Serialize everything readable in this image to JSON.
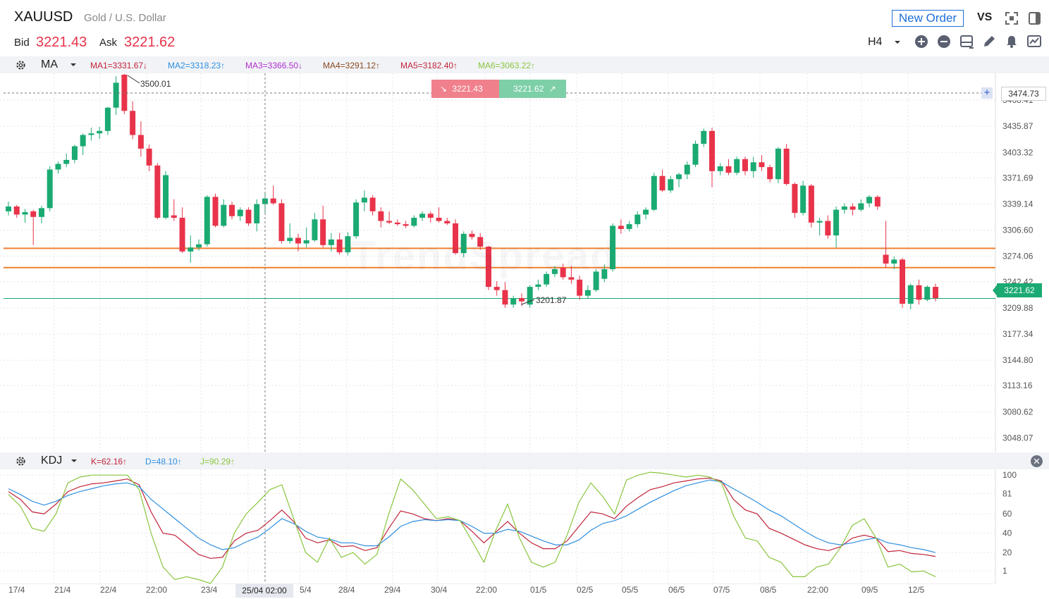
{
  "header": {
    "symbol": "XAUUSD",
    "description": "Gold / U.S. Dollar",
    "bid_label": "Bid",
    "bid": "3221.43",
    "ask_label": "Ask",
    "ask": "3221.62",
    "new_order_label": "New Order",
    "vs_label": "VS",
    "timeframe": "H4"
  },
  "toolbar_icons": [
    "zoom-in-icon",
    "zoom-out-icon",
    "chart-type-icon",
    "pencil-icon",
    "bell-icon",
    "chart-settings-icon"
  ],
  "colors": {
    "up": "#1aaa72",
    "down": "#e8334a",
    "ma_level": "#f08030",
    "k": "#c0233a",
    "d": "#2f8fe0",
    "j": "#8ac53e"
  },
  "ma_bar": {
    "name": "MA",
    "values": [
      {
        "label": "MA1=3331.67↓",
        "color": "#c0233a"
      },
      {
        "label": "MA2=3318.23↑",
        "color": "#2f8fe0"
      },
      {
        "label": "MA3=3366.50↓",
        "color": "#b02fcf"
      },
      {
        "label": "MA4=3291.12↑",
        "color": "#8a4a20"
      },
      {
        "label": "MA5=3182.40↑",
        "color": "#c0233a"
      },
      {
        "label": "MA6=3063.22↑",
        "color": "#8ac53e"
      }
    ]
  },
  "kdj_bar": {
    "name": "KDJ",
    "values": [
      {
        "label": "K=62.16↑",
        "color": "#c0233a"
      },
      {
        "label": "D=48.10↑",
        "color": "#2f8fe0"
      },
      {
        "label": "J=90.29↑",
        "color": "#8ac53e"
      }
    ]
  },
  "pills": {
    "bid": "3221.43",
    "ask": "3221.62"
  },
  "cursor": {
    "price": "3474.73",
    "time": "25/04 02:00"
  },
  "current_price_tag": "3221.62",
  "high_label": "3500.01",
  "low_label": "3201.87",
  "watermark": "TrendSpread",
  "chart_data": [
    {
      "type": "candlestick",
      "title": "",
      "y_ticks": [
        "3468.41",
        "3435.87",
        "3403.32",
        "3371.69",
        "3339.14",
        "3306.60",
        "3274.06",
        "3242.42",
        "3209.88",
        "3177.34",
        "3144.80",
        "3113.16",
        "3080.62",
        "3048.07"
      ],
      "ylim": [
        3030,
        3500
      ],
      "x_ticks": [
        "17/4",
        "21/4",
        "22/4",
        "22:00",
        "23/4",
        "5/4",
        "28/4",
        "29/4",
        "30/4",
        "22:00",
        "01/5",
        "02/5",
        "05/5",
        "06/5",
        "07/5",
        "08/5",
        "22:00",
        "09/5",
        "12/5"
      ],
      "horizontal_levels": [
        3284,
        3260
      ],
      "current_price": 3221.62,
      "candles": [
        [
          3330,
          3342,
          3325,
          3336
        ],
        [
          3336,
          3338,
          3322,
          3326
        ],
        [
          3326,
          3333,
          3316,
          3329
        ],
        [
          3330,
          3332,
          3288,
          3323
        ],
        [
          3323,
          3337,
          3315,
          3334
        ],
        [
          3334,
          3386,
          3330,
          3382
        ],
        [
          3382,
          3392,
          3377,
          3389
        ],
        [
          3389,
          3402,
          3385,
          3394
        ],
        [
          3394,
          3413,
          3390,
          3411
        ],
        [
          3411,
          3427,
          3400,
          3425
        ],
        [
          3425,
          3434,
          3418,
          3427
        ],
        [
          3427,
          3435,
          3420,
          3430
        ],
        [
          3430,
          3460,
          3425,
          3459
        ],
        [
          3459,
          3498,
          3450,
          3490
        ],
        [
          3500,
          3501,
          3451,
          3455
        ],
        [
          3455,
          3467,
          3420,
          3425
        ],
        [
          3425,
          3442,
          3398,
          3408
        ],
        [
          3408,
          3413,
          3380,
          3387
        ],
        [
          3387,
          3390,
          3320,
          3322
        ],
        [
          3322,
          3380,
          3320,
          3375
        ],
        [
          3325,
          3345,
          3318,
          3322
        ],
        [
          3322,
          3335,
          3278,
          3280
        ],
        [
          3280,
          3300,
          3266,
          3285
        ],
        [
          3285,
          3295,
          3281,
          3289
        ],
        [
          3289,
          3350,
          3286,
          3348
        ],
        [
          3348,
          3352,
          3310,
          3312
        ],
        [
          3312,
          3345,
          3310,
          3338
        ],
        [
          3338,
          3342,
          3320,
          3324
        ],
        [
          3324,
          3335,
          3318,
          3332
        ],
        [
          3332,
          3335,
          3312,
          3315
        ],
        [
          3315,
          3345,
          3305,
          3339
        ],
        [
          3339,
          3354,
          3328,
          3346
        ],
        [
          3346,
          3362,
          3338,
          3340
        ],
        [
          3340,
          3345,
          3290,
          3293
        ],
        [
          3293,
          3315,
          3290,
          3297
        ],
        [
          3297,
          3302,
          3280,
          3290
        ],
        [
          3290,
          3310,
          3285,
          3294
        ],
        [
          3294,
          3328,
          3292,
          3320
        ],
        [
          3320,
          3337,
          3285,
          3288
        ],
        [
          3288,
          3303,
          3280,
          3295
        ],
        [
          3295,
          3303,
          3276,
          3279
        ],
        [
          3279,
          3304,
          3275,
          3299
        ],
        [
          3299,
          3345,
          3296,
          3341
        ],
        [
          3341,
          3356,
          3330,
          3347
        ],
        [
          3347,
          3350,
          3325,
          3330
        ],
        [
          3330,
          3335,
          3310,
          3318
        ],
        [
          3318,
          3330,
          3314,
          3316
        ],
        [
          3316,
          3320,
          3312,
          3314
        ],
        [
          3314,
          3318,
          3309,
          3312
        ],
        [
          3312,
          3325,
          3310,
          3322
        ],
        [
          3322,
          3330,
          3318,
          3327
        ],
        [
          3327,
          3330,
          3316,
          3322
        ],
        [
          3322,
          3335,
          3316,
          3318
        ],
        [
          3318,
          3322,
          3313,
          3315
        ],
        [
          3315,
          3320,
          3276,
          3278
        ],
        [
          3278,
          3305,
          3273,
          3302
        ],
        [
          3302,
          3306,
          3295,
          3298
        ],
        [
          3298,
          3303,
          3282,
          3286
        ],
        [
          3286,
          3287,
          3232,
          3236
        ],
        [
          3236,
          3243,
          3225,
          3232
        ],
        [
          3232,
          3242,
          3210,
          3214
        ],
        [
          3214,
          3225,
          3210,
          3222
        ],
        [
          3222,
          3228,
          3212,
          3218
        ],
        [
          3214,
          3238,
          3210,
          3236
        ],
        [
          3236,
          3245,
          3232,
          3239
        ],
        [
          3239,
          3255,
          3236,
          3252
        ],
        [
          3252,
          3262,
          3248,
          3258
        ],
        [
          3260,
          3265,
          3245,
          3248
        ],
        [
          3248,
          3262,
          3240,
          3245
        ],
        [
          3245,
          3250,
          3220,
          3225
        ],
        [
          3225,
          3238,
          3222,
          3232
        ],
        [
          3232,
          3258,
          3230,
          3255
        ],
        [
          3246,
          3264,
          3242,
          3258
        ],
        [
          3258,
          3315,
          3255,
          3312
        ],
        [
          3312,
          3320,
          3302,
          3308
        ],
        [
          3308,
          3318,
          3305,
          3314
        ],
        [
          3314,
          3330,
          3310,
          3326
        ],
        [
          3326,
          3335,
          3320,
          3332
        ],
        [
          3332,
          3378,
          3330,
          3374
        ],
        [
          3374,
          3382,
          3354,
          3356
        ],
        [
          3356,
          3374,
          3353,
          3370
        ],
        [
          3370,
          3378,
          3360,
          3376
        ],
        [
          3376,
          3392,
          3370,
          3388
        ],
        [
          3388,
          3418,
          3385,
          3414
        ],
        [
          3414,
          3433,
          3410,
          3430
        ],
        [
          3430,
          3434,
          3360,
          3380
        ],
        [
          3380,
          3390,
          3375,
          3386
        ],
        [
          3386,
          3395,
          3375,
          3378
        ],
        [
          3378,
          3398,
          3375,
          3395
        ],
        [
          3395,
          3398,
          3375,
          3380
        ],
        [
          3380,
          3398,
          3372,
          3391
        ],
        [
          3391,
          3400,
          3380,
          3385
        ],
        [
          3385,
          3388,
          3366,
          3370
        ],
        [
          3370,
          3410,
          3365,
          3408
        ],
        [
          3408,
          3414,
          3362,
          3364
        ],
        [
          3364,
          3366,
          3322,
          3328
        ],
        [
          3328,
          3368,
          3325,
          3362
        ],
        [
          3362,
          3364,
          3310,
          3316
        ],
        [
          3316,
          3322,
          3300,
          3318
        ],
        [
          3318,
          3325,
          3296,
          3300
        ],
        [
          3300,
          3336,
          3285,
          3332
        ],
        [
          3332,
          3340,
          3327,
          3336
        ],
        [
          3336,
          3340,
          3325,
          3332
        ],
        [
          3332,
          3345,
          3330,
          3340
        ],
        [
          3340,
          3350,
          3335,
          3348
        ],
        [
          3348,
          3350,
          3332,
          3336
        ],
        [
          3276,
          3318,
          3260,
          3265
        ],
        [
          3265,
          3274,
          3258,
          3270
        ],
        [
          3270,
          3272,
          3210,
          3215
        ],
        [
          3215,
          3240,
          3208,
          3238
        ],
        [
          3238,
          3245,
          3214,
          3220
        ],
        [
          3220,
          3238,
          3218,
          3236
        ],
        [
          3236,
          3240,
          3218,
          3222
        ]
      ]
    },
    {
      "type": "line",
      "title": "",
      "y_ticks": [
        "100",
        "81",
        "60",
        "40",
        "20",
        "1"
      ],
      "ylim": [
        -12,
        106
      ],
      "series": [
        {
          "name": "K",
          "values": [
            83,
            75,
            62,
            60,
            70,
            83,
            88,
            91,
            92,
            94,
            96,
            90,
            62,
            40,
            38,
            28,
            18,
            14,
            15,
            32,
            40,
            43,
            53,
            64,
            52,
            35,
            30,
            33,
            26,
            27,
            22,
            25,
            45,
            63,
            60,
            55,
            53,
            55,
            53,
            42,
            30,
            41,
            52,
            40,
            30,
            24,
            24,
            32,
            47,
            62,
            60,
            55,
            68,
            77,
            85,
            88,
            92,
            94,
            96,
            97,
            94,
            75,
            64,
            60,
            45,
            40,
            34,
            28,
            24,
            22,
            26,
            35,
            38,
            35,
            21,
            22,
            19,
            18,
            16
          ]
        },
        {
          "name": "D",
          "values": [
            86,
            80,
            73,
            69,
            73,
            79,
            83,
            86,
            89,
            91,
            92,
            88,
            75,
            65,
            55,
            45,
            35,
            28,
            23,
            25,
            31,
            36,
            45,
            55,
            50,
            42,
            36,
            34,
            30,
            30,
            27,
            27,
            36,
            47,
            52,
            54,
            53,
            54,
            53,
            47,
            40,
            40,
            44,
            42,
            37,
            32,
            28,
            28,
            33,
            43,
            50,
            53,
            58,
            65,
            72,
            78,
            84,
            89,
            92,
            95,
            93,
            86,
            79,
            72,
            64,
            58,
            50,
            42,
            35,
            30,
            28,
            30,
            33,
            35,
            30,
            28,
            25,
            23,
            20
          ]
        },
        {
          "name": "J",
          "values": [
            80,
            68,
            45,
            42,
            60,
            92,
            98,
            100,
            100,
            100,
            100,
            85,
            40,
            5,
            -8,
            -5,
            -8,
            -12,
            5,
            40,
            60,
            72,
            85,
            90,
            55,
            20,
            10,
            35,
            15,
            20,
            8,
            18,
            60,
            96,
            85,
            70,
            55,
            57,
            53,
            32,
            10,
            43,
            70,
            35,
            10,
            5,
            10,
            38,
            72,
            92,
            78,
            60,
            95,
            100,
            103,
            102,
            100,
            98,
            100,
            98,
            92,
            58,
            35,
            32,
            15,
            10,
            -5,
            -5,
            5,
            8,
            25,
            48,
            55,
            35,
            5,
            8,
            0,
            1,
            -5
          ]
        }
      ]
    }
  ]
}
